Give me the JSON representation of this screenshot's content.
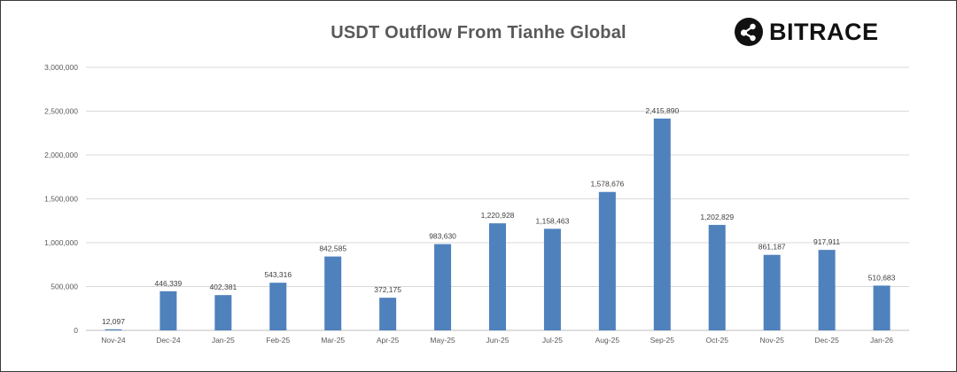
{
  "logo": {
    "text": "BITRACE",
    "icon": "bitrace-logo-icon"
  },
  "chart_data": {
    "type": "bar",
    "title": "USDT Outflow From Tianhe Global",
    "xlabel": "",
    "ylabel": "",
    "categories": [
      "Nov-24",
      "Dec-24",
      "Jan-25",
      "Feb-25",
      "Mar-25",
      "Apr-25",
      "May-25",
      "Jun-25",
      "Jul-25",
      "Aug-25",
      "Sep-25",
      "Oct-25",
      "Nov-25",
      "Dec-25",
      "Jan-26"
    ],
    "values": [
      12097,
      446339,
      402381,
      543316,
      842585,
      372175,
      983630,
      1220928,
      1158463,
      1578676,
      2415890,
      1202829,
      861187,
      917911,
      510683
    ],
    "data_labels": [
      "12,097",
      "446,339",
      "402,381",
      "543,316",
      "842,585",
      "372,175",
      "983,630",
      "1,220,928",
      "1,158,463",
      "1,578,676",
      "2,415,890",
      "1,202,829",
      "861,187",
      "917,911",
      "510,683"
    ],
    "y_ticks": [
      0,
      500000,
      1000000,
      1500000,
      2000000,
      2500000,
      3000000
    ],
    "y_tick_labels": [
      "0",
      "500,000",
      "1,000,000",
      "1,500,000",
      "2,000,000",
      "2,500,000",
      "3,000,000"
    ],
    "ylim": [
      0,
      3000000
    ],
    "grid": true,
    "legend": "none",
    "bar_color": "#4F81BD",
    "grid_color": "#D9D9D9"
  }
}
